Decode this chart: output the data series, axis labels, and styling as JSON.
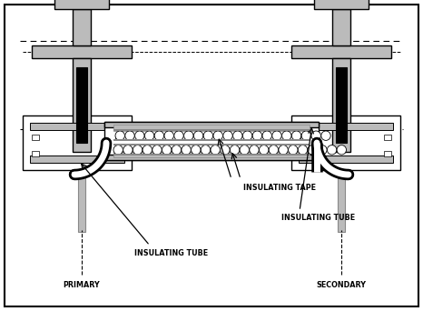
{
  "white": "#ffffff",
  "black": "#000000",
  "light_gray": "#bbbbbb",
  "mid_gray": "#888888",
  "dark_gray": "#444444",
  "bg": "#f5f5f5",
  "labels": {
    "insulating_tape": "INSULATING TAPE",
    "insulating_tube_left": "INSULATING TUBE",
    "insulating_tube_right": "INSULATING TUBE",
    "primary": "PRIMARY",
    "secondary": "SECONDARY"
  },
  "figsize": [
    4.66,
    3.42
  ],
  "dpi": 100
}
